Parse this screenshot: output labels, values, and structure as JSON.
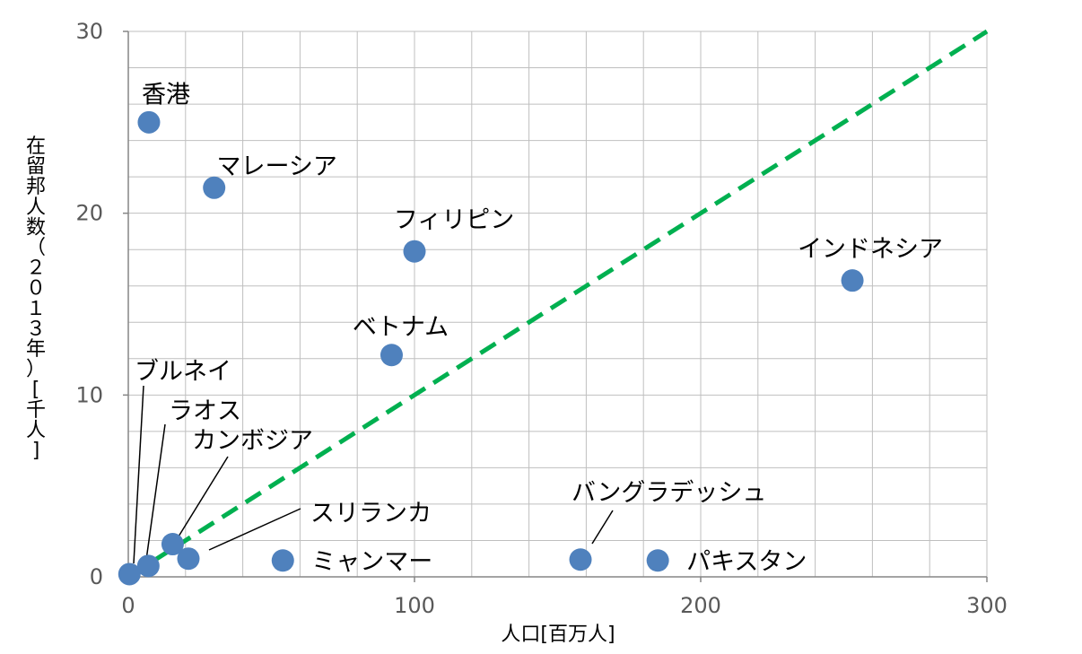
{
  "chart_data": {
    "type": "scatter",
    "title": "",
    "xlabel": "人口[百万人]",
    "ylabel": "在留邦人数（２０１３年）[千人]",
    "xlim": [
      0,
      300
    ],
    "ylim": [
      0,
      30
    ],
    "x_ticks": [
      0,
      100,
      200,
      300
    ],
    "y_ticks": [
      0,
      10,
      20,
      30
    ],
    "grid": true,
    "legend": "none",
    "colors": {
      "points": "#4F81BD",
      "trend_line": "#00B050",
      "grid": "#BFBFBF",
      "axis": "#868686"
    },
    "trend_line": {
      "style": "dashed",
      "from": [
        0,
        0
      ],
      "to": [
        300,
        30
      ]
    },
    "points": [
      {
        "name": "香港",
        "x": 7.2,
        "y": 25.0
      },
      {
        "name": "マレーシア",
        "x": 30.0,
        "y": 21.4
      },
      {
        "name": "フィリピン",
        "x": 100.0,
        "y": 17.9
      },
      {
        "name": "インドネシア",
        "x": 253.0,
        "y": 16.3
      },
      {
        "name": "ベトナム",
        "x": 92.0,
        "y": 12.2
      },
      {
        "name": "ブルネイ",
        "x": 0.4,
        "y": 0.15
      },
      {
        "name": "ラオス",
        "x": 7.0,
        "y": 0.6
      },
      {
        "name": "カンボジア",
        "x": 15.5,
        "y": 1.8
      },
      {
        "name": "スリランカ",
        "x": 21.0,
        "y": 1.0
      },
      {
        "name": "ミャンマー",
        "x": 54.0,
        "y": 0.9
      },
      {
        "name": "バングラデッシュ",
        "x": 158.0,
        "y": 0.95
      },
      {
        "name": "パキスタン",
        "x": 185.0,
        "y": 0.9
      }
    ]
  }
}
